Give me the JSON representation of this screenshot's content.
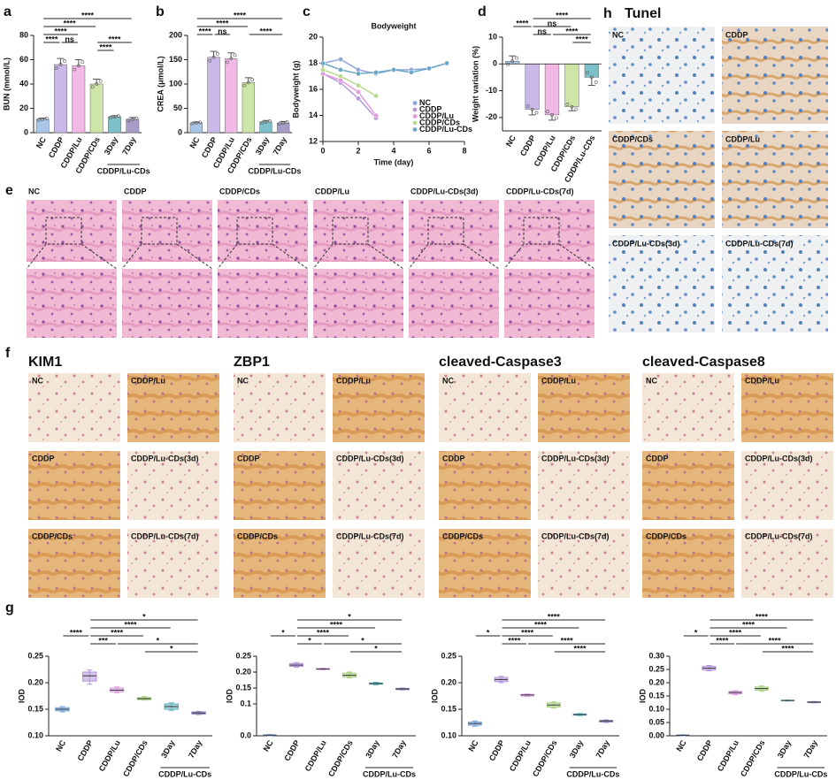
{
  "panels": {
    "e": {
      "panel": "e",
      "images": [
        "NC",
        "CDDP",
        "CDDP/CDs",
        "CDDP/Lu",
        "CDDP/Lu-CDs(3d)",
        "CDDP/Lu-CDs(7d)"
      ]
    },
    "h": {
      "panel": "h",
      "title": "Tunel",
      "images": [
        "NC",
        "CDDP",
        "CDDP/CDs",
        "CDDP/Lu",
        "CDDP/Lu-CDs(3d)",
        "CDDP/Lu-CDs(7d)"
      ]
    },
    "f": {
      "panel": "f",
      "groups": [
        {
          "title": "KIM1",
          "images": [
            "NC",
            "CDDP/Lu",
            "CDDP",
            "CDDP/Lu-CDs(3d)",
            "CDDP/CDs",
            "CDDP/Lu-CDs(7d)"
          ]
        },
        {
          "title": "ZBP1",
          "images": [
            "NC",
            "CDDP/Lu",
            "CDDP",
            "CDDP/Lu-CDs(3d)",
            "CDDP/CDs",
            "CDDP/Lu-CDs(7d)"
          ]
        },
        {
          "title": "cleaved-Caspase3",
          "images": [
            "NC",
            "CDDP/Lu",
            "CDDP",
            "CDDP/Lu-CDs(3d)",
            "CDDP/CDs",
            "CDDP/Lu-CDs(7d)"
          ]
        },
        {
          "title": "cleaved-Caspase8",
          "images": [
            "NC",
            "CDDP/Lu",
            "CDDP",
            "CDDP/Lu-CDs(3d)",
            "CDDP/CDs",
            "CDDP/Lu-CDs(7d)"
          ]
        }
      ]
    }
  },
  "chart_data": [
    {
      "type": "bar",
      "panel": "a",
      "ylabel": "BUN (mmol/L)",
      "categories": [
        "NC",
        "CDDP",
        "CDDP/Lu",
        "CDDP/CDs",
        "3Day",
        "7Day"
      ],
      "values": [
        11,
        56,
        55,
        40,
        13,
        11
      ],
      "errors": [
        1,
        5,
        5,
        4,
        1,
        1.5
      ],
      "colors": [
        "#a9c6e8",
        "#c9b8e8",
        "#f2b8e6",
        "#cde6a5",
        "#7cc0c9",
        "#a89cc9"
      ],
      "ylim": [
        0,
        80
      ],
      "yticks": [
        0,
        20,
        40,
        60,
        80
      ],
      "group_label": "CDDP/Lu-CDs",
      "annotations": [
        {
          "text": "****",
          "between": [
            "NC",
            "7Day"
          ]
        },
        {
          "text": "****",
          "between": [
            "NC",
            "CDDP/CDs"
          ]
        },
        {
          "text": "****",
          "between": [
            "NC",
            "CDDP/Lu"
          ]
        },
        {
          "text": "****",
          "between": [
            "NC",
            "CDDP"
          ]
        },
        {
          "text": "ns",
          "between": [
            "CDDP",
            "CDDP/Lu"
          ]
        },
        {
          "text": "****",
          "between": [
            "CDDP/CDs",
            "7Day"
          ]
        },
        {
          "text": "****",
          "between": [
            "CDDP/CDs",
            "3Day"
          ]
        }
      ]
    },
    {
      "type": "bar",
      "panel": "b",
      "ylabel": "CREA (μmol/L)",
      "categories": [
        "NC",
        "CDDP",
        "CDDP/Lu",
        "CDDP/CDs",
        "3Day",
        "7Day"
      ],
      "values": [
        20,
        155,
        152,
        103,
        22,
        20
      ],
      "errors": [
        2,
        12,
        12,
        10,
        3,
        3
      ],
      "colors": [
        "#a9c6e8",
        "#c9b8e8",
        "#f2b8e6",
        "#cde6a5",
        "#7cc0c9",
        "#a89cc9"
      ],
      "ylim": [
        0,
        200
      ],
      "yticks": [
        0,
        50,
        100,
        150,
        200
      ],
      "group_label": "CDDP/Lu-CDs",
      "annotations": [
        {
          "text": "****",
          "between": [
            "NC",
            "7Day"
          ]
        },
        {
          "text": "****",
          "between": [
            "NC",
            "CDDP/CDs"
          ]
        },
        {
          "text": "****",
          "between": [
            "NC",
            "CDDP"
          ]
        },
        {
          "text": "ns",
          "between": [
            "CDDP",
            "CDDP/Lu"
          ]
        },
        {
          "text": "****",
          "between": [
            "CDDP/CDs",
            "7Day"
          ]
        }
      ]
    },
    {
      "type": "line",
      "panel": "c",
      "title": "Bodyweight",
      "xlabel": "Time (day)",
      "ylabel": "Bodyweight (g)",
      "x": [
        0,
        1,
        2,
        3,
        4,
        5,
        6,
        7
      ],
      "xlim": [
        0,
        8
      ],
      "xticks": [
        0,
        2,
        4,
        6,
        8
      ],
      "ylim": [
        12,
        20
      ],
      "yticks": [
        12,
        14,
        16,
        18,
        20
      ],
      "legend": "lower right",
      "series": [
        {
          "name": "NC",
          "color": "#8fa6d8",
          "values": [
            18,
            18.3,
            17.5,
            17.2,
            17.5,
            17.5,
            17.6,
            18
          ]
        },
        {
          "name": "CDDP",
          "color": "#b59ad6",
          "values": [
            17.2,
            16.5,
            15.3,
            13.8,
            null,
            null,
            null,
            null
          ]
        },
        {
          "name": "CDDP/Lu",
          "color": "#e29be0",
          "values": [
            17.2,
            16.7,
            15.8,
            14,
            null,
            null,
            null,
            null
          ]
        },
        {
          "name": "CDDP/CDs",
          "color": "#b7d98b",
          "values": [
            17.5,
            17,
            16.3,
            15.5,
            null,
            null,
            null,
            null
          ]
        },
        {
          "name": "CDDP/Lu-CDs",
          "color": "#6aa8c8",
          "values": [
            18,
            17.5,
            17.2,
            17.3,
            17.5,
            17.3,
            17.6,
            18
          ]
        }
      ]
    },
    {
      "type": "bar",
      "panel": "d",
      "ylabel": "Weight variation (%)",
      "categories": [
        "NC",
        "CDDP",
        "CDDP/Lu",
        "CDDP/CDs",
        "CDDP/Lu-CDs"
      ],
      "values": [
        1,
        -17,
        -19,
        -16,
        -5
      ],
      "errors": [
        2,
        2,
        2,
        1.5,
        3
      ],
      "colors": [
        "#a9c6e8",
        "#c9b8e8",
        "#f2b8e6",
        "#cde6a5",
        "#7cc0c9"
      ],
      "ylim": [
        -25,
        10
      ],
      "yticks": [
        -20,
        -10,
        0,
        10
      ],
      "annotations": [
        {
          "text": "****",
          "between": [
            "CDDP",
            "CDDP/Lu-CDs"
          ]
        },
        {
          "text": "ns",
          "between": [
            "CDDP",
            "CDDP/CDs"
          ]
        },
        {
          "text": "****",
          "between": [
            "NC",
            "CDDP"
          ]
        },
        {
          "text": "ns",
          "between": [
            "CDDP",
            "CDDP/Lu"
          ]
        },
        {
          "text": "****",
          "between": [
            "CDDP/Lu",
            "CDDP/Lu-CDs"
          ]
        },
        {
          "text": "****",
          "between": [
            "CDDP/CDs",
            "CDDP/Lu-CDs"
          ]
        }
      ]
    },
    {
      "type": "box",
      "panel": "g",
      "ylabel": "IOD",
      "categories": [
        "NC",
        "CDDP",
        "CDDP/Lu",
        "CDDP/CDs",
        "3Day",
        "7Day"
      ],
      "colors": [
        "#7aa7dc",
        "#b493dc",
        "#d99be0",
        "#a7d07e",
        "#5fb3c0",
        "#9486c6"
      ],
      "boxes": {
        "min": [
          0.145,
          0.197,
          0.181,
          0.167,
          0.148,
          0.14
        ],
        "q1": [
          0.147,
          0.203,
          0.183,
          0.168,
          0.15,
          0.141
        ],
        "median": [
          0.15,
          0.213,
          0.186,
          0.17,
          0.155,
          0.143
        ],
        "q3": [
          0.153,
          0.22,
          0.19,
          0.172,
          0.16,
          0.145
        ],
        "max": [
          0.155,
          0.224,
          0.192,
          0.174,
          0.162,
          0.146
        ]
      },
      "ylim": [
        0.1,
        0.25
      ],
      "yticks": [
        {
          "value": 0.1,
          "label": "0.10"
        },
        0.15,
        {
          "value": 0.2,
          "label": "0.20"
        },
        0.25
      ],
      "group_label": "CDDP/Lu-CDs",
      "annotations": [
        {
          "text": "*",
          "between": [
            "CDDP",
            "7Day"
          ]
        },
        {
          "text": "****",
          "between": [
            "CDDP",
            "3Day"
          ]
        },
        {
          "text": "****",
          "between": [
            "CDDP",
            "CDDP/CDs"
          ]
        },
        {
          "text": "****",
          "between": [
            "NC",
            "CDDP"
          ]
        },
        {
          "text": "***",
          "between": [
            "CDDP",
            "CDDP/Lu"
          ]
        },
        {
          "text": "*",
          "between": [
            "CDDP/Lu",
            "7Day"
          ]
        },
        {
          "text": "*",
          "between": [
            "CDDP/CDs",
            "7Day"
          ]
        }
      ]
    },
    {
      "type": "box",
      "ylabel": "IOD",
      "categories": [
        "NC",
        "CDDP",
        "CDDP/Lu",
        "CDDP/CDs",
        "3Day",
        "7Day"
      ],
      "colors": [
        "#7aa7dc",
        "#b493dc",
        "#d99be0",
        "#a7d07e",
        "#5fb3c0",
        "#9486c6"
      ],
      "boxes": {
        "min": [
          0,
          0.215,
          0.207,
          0.182,
          0.16,
          0.144
        ],
        "q1": [
          0.001,
          0.218,
          0.208,
          0.185,
          0.162,
          0.145
        ],
        "median": [
          0.002,
          0.222,
          0.21,
          0.19,
          0.164,
          0.147
        ],
        "q3": [
          0.003,
          0.227,
          0.211,
          0.197,
          0.166,
          0.149
        ],
        "max": [
          0.004,
          0.23,
          0.212,
          0.2,
          0.168,
          0.15
        ]
      },
      "ylim": [
        0,
        0.25
      ],
      "yticks": [
        {
          "value": 0,
          "label": "0.0"
        },
        0.1,
        0.15,
        {
          "value": 0.2,
          "label": "0.20"
        },
        0.25
      ],
      "group_label": "CDDP/Lu-CDs",
      "annotations": [
        {
          "text": "*",
          "between": [
            "CDDP",
            "7Day"
          ]
        },
        {
          "text": "****",
          "between": [
            "CDDP",
            "3Day"
          ]
        },
        {
          "text": "****",
          "between": [
            "CDDP",
            "CDDP/CDs"
          ]
        },
        {
          "text": "*",
          "between": [
            "NC",
            "CDDP"
          ]
        },
        {
          "text": "*",
          "between": [
            "CDDP",
            "CDDP/Lu"
          ]
        },
        {
          "text": "*",
          "between": [
            "CDDP/Lu",
            "7Day"
          ]
        },
        {
          "text": "*",
          "between": [
            "CDDP/CDs",
            "7Day"
          ]
        }
      ]
    },
    {
      "type": "box",
      "ylabel": "IOD",
      "categories": [
        "NC",
        "CDDP",
        "CDDP/Lu",
        "CDDP/CDs",
        "3Day",
        "7Day"
      ],
      "colors": [
        "#7aa7dc",
        "#b493dc",
        "#d99be0",
        "#a7d07e",
        "#5fb3c0",
        "#9486c6"
      ],
      "boxes": {
        "min": [
          0.118,
          0.2,
          0.174,
          0.152,
          0.138,
          0.125
        ],
        "q1": [
          0.12,
          0.202,
          0.175,
          0.154,
          0.139,
          0.126
        ],
        "median": [
          0.123,
          0.206,
          0.177,
          0.158,
          0.14,
          0.128
        ],
        "q3": [
          0.126,
          0.21,
          0.178,
          0.162,
          0.141,
          0.129
        ],
        "max": [
          0.128,
          0.212,
          0.179,
          0.164,
          0.142,
          0.13
        ]
      },
      "ylim": [
        0.1,
        0.25
      ],
      "yticks": [
        {
          "value": 0.1,
          "label": "0.10"
        },
        0.15,
        {
          "value": 0.2,
          "label": "0.20"
        },
        0.25
      ],
      "group_label": "CDDP/Lu-CDs",
      "annotations": [
        {
          "text": "****",
          "between": [
            "CDDP",
            "7Day"
          ]
        },
        {
          "text": "****",
          "between": [
            "CDDP",
            "3Day"
          ]
        },
        {
          "text": "****",
          "between": [
            "CDDP",
            "CDDP/CDs"
          ]
        },
        {
          "text": "*",
          "between": [
            "NC",
            "CDDP"
          ]
        },
        {
          "text": "****",
          "between": [
            "CDDP",
            "CDDP/Lu"
          ]
        },
        {
          "text": "****",
          "between": [
            "CDDP/Lu",
            "7Day"
          ]
        },
        {
          "text": "****",
          "between": [
            "CDDP/CDs",
            "7Day"
          ]
        }
      ]
    },
    {
      "type": "box",
      "ylabel": "IOD",
      "categories": [
        "NC",
        "CDDP",
        "CDDP/Lu",
        "CDDP/CDs",
        "3Day",
        "7Day"
      ],
      "colors": [
        "#7aa7dc",
        "#b493dc",
        "#d99be0",
        "#a7d07e",
        "#5fb3c0",
        "#9486c6"
      ],
      "boxes": {
        "min": [
          0,
          0.245,
          0.155,
          0.168,
          0.131,
          0.124
        ],
        "q1": [
          0.001,
          0.248,
          0.158,
          0.172,
          0.132,
          0.125
        ],
        "median": [
          0.002,
          0.255,
          0.163,
          0.178,
          0.133,
          0.127
        ],
        "q3": [
          0.003,
          0.262,
          0.167,
          0.184,
          0.134,
          0.128
        ],
        "max": [
          0.004,
          0.265,
          0.17,
          0.188,
          0.135,
          0.129
        ]
      },
      "ylim": [
        0,
        0.3
      ],
      "yticks": [
        {
          "value": 0,
          "label": "0.00"
        },
        0.05,
        {
          "value": 0.1,
          "label": "0.10"
        },
        0.15,
        {
          "value": 0.2,
          "label": "0.20"
        },
        0.25,
        {
          "value": 0.3,
          "label": "0.30"
        }
      ],
      "group_label": "CDDP/Lu-CDs",
      "annotations": [
        {
          "text": "****",
          "between": [
            "CDDP",
            "7Day"
          ]
        },
        {
          "text": "****",
          "between": [
            "CDDP",
            "3Day"
          ]
        },
        {
          "text": "****",
          "between": [
            "CDDP",
            "CDDP/CDs"
          ]
        },
        {
          "text": "*",
          "between": [
            "NC",
            "CDDP"
          ]
        },
        {
          "text": "****",
          "between": [
            "CDDP",
            "CDDP/Lu"
          ]
        },
        {
          "text": "****",
          "between": [
            "CDDP/Lu",
            "7Day"
          ]
        },
        {
          "text": "****",
          "between": [
            "CDDP/CDs",
            "7Day"
          ]
        }
      ]
    }
  ]
}
